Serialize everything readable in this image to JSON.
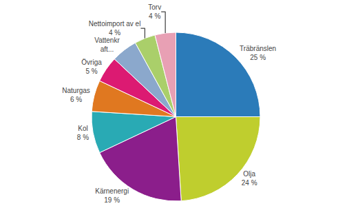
{
  "chart_data": {
    "type": "pie",
    "categories": [
      "Träbränslen\n25 %",
      "Olja\n24 %",
      "Kärnenergi\n19 %",
      "Kol\n8 %",
      "Naturgas\n6 %",
      "Övriga\n5 %",
      "Vattenkr\naft...",
      "Nettoimport av el\n4 %",
      "Torv\n4 %"
    ],
    "values": [
      25,
      24,
      19,
      8,
      6,
      5,
      5,
      4,
      4
    ],
    "colors": [
      "#2B7BB9",
      "#BFCE2E",
      "#8B1E8B",
      "#29AAB4",
      "#E07820",
      "#DC1A72",
      "#8BA8CC",
      "#AACF6A",
      "#E8A0B4"
    ]
  }
}
